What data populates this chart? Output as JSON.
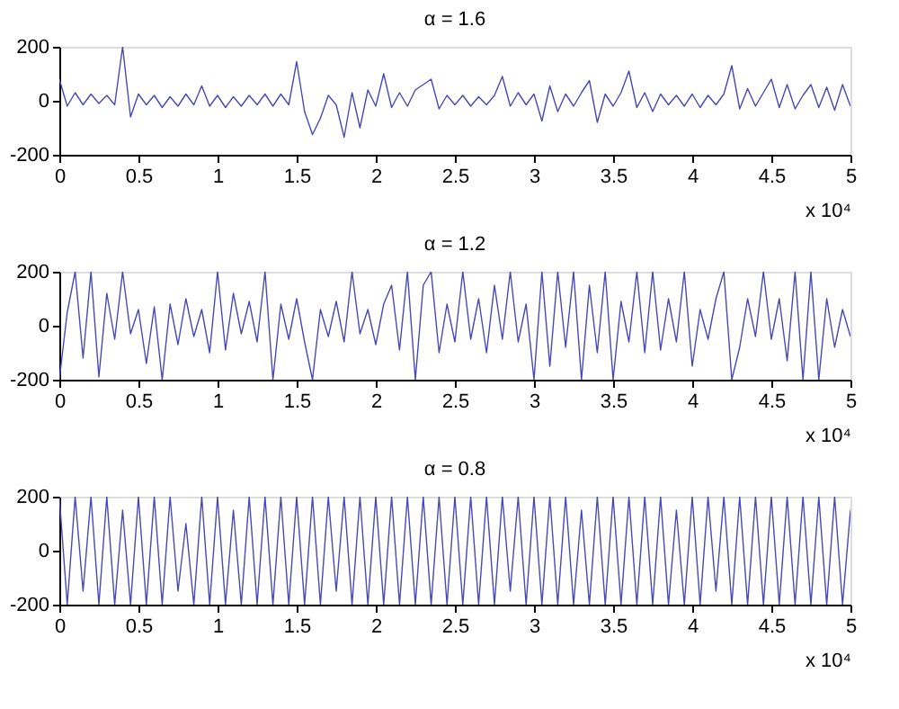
{
  "chart_data": [
    {
      "type": "line",
      "title": "α = 1.6",
      "xlabel": "x 10⁴",
      "color": "#4848b8",
      "grid": false,
      "marker": "none",
      "line_style": "solid",
      "xlim": [
        0,
        5
      ],
      "xticks": [
        0,
        0.5,
        1,
        1.5,
        2,
        2.5,
        3,
        3.5,
        4,
        4.5,
        5
      ],
      "ylim": [
        -200,
        200
      ],
      "yticks": [
        -200,
        0,
        200
      ],
      "x": [
        0,
        0.05,
        0.1,
        0.15,
        0.2,
        0.25,
        0.3,
        0.35,
        0.4,
        0.45,
        0.5,
        0.55,
        0.6,
        0.65,
        0.7,
        0.75,
        0.8,
        0.85,
        0.9,
        0.95,
        1,
        1.05,
        1.1,
        1.15,
        1.2,
        1.25,
        1.3,
        1.35,
        1.4,
        1.45,
        1.5,
        1.55,
        1.6,
        1.65,
        1.7,
        1.75,
        1.8,
        1.85,
        1.9,
        1.95,
        2,
        2.05,
        2.1,
        2.15,
        2.2,
        2.25,
        2.3,
        2.35,
        2.4,
        2.45,
        2.5,
        2.55,
        2.6,
        2.65,
        2.7,
        2.75,
        2.8,
        2.85,
        2.9,
        2.95,
        3,
        3.05,
        3.1,
        3.15,
        3.2,
        3.25,
        3.3,
        3.35,
        3.4,
        3.45,
        3.5,
        3.55,
        3.6,
        3.65,
        3.7,
        3.75,
        3.8,
        3.85,
        3.9,
        3.95,
        4,
        4.05,
        4.1,
        4.15,
        4.2,
        4.25,
        4.3,
        4.35,
        4.4,
        4.45,
        4.5,
        4.55,
        4.6,
        4.65,
        4.7,
        4.75,
        4.8,
        4.85,
        4.9,
        4.95,
        5
      ],
      "values": [
        80,
        -20,
        30,
        -15,
        25,
        -10,
        20,
        -15,
        200,
        -60,
        25,
        -15,
        20,
        -25,
        15,
        -20,
        25,
        -15,
        55,
        -20,
        20,
        -25,
        15,
        -20,
        20,
        -15,
        25,
        -20,
        25,
        -15,
        145,
        -40,
        -125,
        -65,
        20,
        -15,
        -135,
        30,
        -100,
        40,
        -20,
        100,
        -25,
        30,
        -20,
        40,
        60,
        80,
        -30,
        20,
        -15,
        20,
        -20,
        15,
        -15,
        20,
        90,
        -20,
        30,
        -15,
        25,
        -75,
        55,
        -40,
        25,
        -20,
        30,
        75,
        -80,
        25,
        -20,
        30,
        110,
        -25,
        30,
        -40,
        25,
        -15,
        20,
        -20,
        25,
        -25,
        20,
        -15,
        25,
        130,
        -30,
        45,
        -20,
        30,
        80,
        -25,
        60,
        -30,
        20,
        60,
        -25,
        50,
        -35,
        60,
        -20
      ]
    },
    {
      "type": "line",
      "title": "α = 1.2",
      "xlabel": "x 10⁴",
      "color": "#4848b8",
      "grid": false,
      "marker": "none",
      "line_style": "solid",
      "xlim": [
        0,
        5
      ],
      "xticks": [
        0,
        0.5,
        1,
        1.5,
        2,
        2.5,
        3,
        3.5,
        4,
        4.5,
        5
      ],
      "ylim": [
        -200,
        200
      ],
      "yticks": [
        -200,
        0,
        200
      ],
      "x": [
        0,
        0.05,
        0.1,
        0.15,
        0.2,
        0.25,
        0.3,
        0.35,
        0.4,
        0.45,
        0.5,
        0.55,
        0.6,
        0.65,
        0.7,
        0.75,
        0.8,
        0.85,
        0.9,
        0.95,
        1,
        1.05,
        1.1,
        1.15,
        1.2,
        1.25,
        1.3,
        1.35,
        1.4,
        1.45,
        1.5,
        1.55,
        1.6,
        1.65,
        1.7,
        1.75,
        1.8,
        1.85,
        1.9,
        1.95,
        2,
        2.05,
        2.1,
        2.15,
        2.2,
        2.25,
        2.3,
        2.35,
        2.4,
        2.45,
        2.5,
        2.55,
        2.6,
        2.65,
        2.7,
        2.75,
        2.8,
        2.85,
        2.9,
        2.95,
        3,
        3.05,
        3.1,
        3.15,
        3.2,
        3.25,
        3.3,
        3.35,
        3.4,
        3.45,
        3.5,
        3.55,
        3.6,
        3.65,
        3.7,
        3.75,
        3.8,
        3.85,
        3.9,
        3.95,
        4,
        4.05,
        4.1,
        4.15,
        4.2,
        4.25,
        4.3,
        4.35,
        4.4,
        4.45,
        4.5,
        4.55,
        4.6,
        4.65,
        4.7,
        4.75,
        4.8,
        4.85,
        4.9,
        4.95,
        5
      ],
      "values": [
        -200,
        50,
        200,
        -120,
        200,
        -190,
        120,
        -50,
        200,
        -30,
        60,
        -140,
        70,
        -200,
        80,
        -70,
        100,
        -40,
        60,
        -100,
        200,
        -90,
        120,
        -30,
        90,
        -60,
        200,
        -200,
        80,
        -50,
        100,
        -60,
        -200,
        60,
        -40,
        90,
        -60,
        200,
        -30,
        60,
        -70,
        80,
        150,
        -90,
        200,
        -200,
        150,
        200,
        -100,
        80,
        -60,
        200,
        -50,
        100,
        -100,
        150,
        -50,
        200,
        -60,
        80,
        -200,
        200,
        -150,
        200,
        -80,
        200,
        -200,
        150,
        -100,
        200,
        -200,
        90,
        -60,
        200,
        -100,
        200,
        -90,
        100,
        -60,
        200,
        -150,
        60,
        -50,
        100,
        200,
        -200,
        -80,
        100,
        -40,
        200,
        -50,
        100,
        -130,
        200,
        -200,
        200,
        -200,
        100,
        -80,
        60,
        -40
      ]
    },
    {
      "type": "line",
      "title": "α = 0.8",
      "xlabel": "x 10⁴",
      "color": "#4848b8",
      "grid": false,
      "marker": "none",
      "line_style": "solid",
      "xlim": [
        0,
        5
      ],
      "xticks": [
        0,
        0.5,
        1,
        1.5,
        2,
        2.5,
        3,
        3.5,
        4,
        4.5,
        5
      ],
      "ylim": [
        -200,
        200
      ],
      "yticks": [
        -200,
        0,
        200
      ],
      "x": [
        0,
        0.05,
        0.1,
        0.15,
        0.2,
        0.25,
        0.3,
        0.35,
        0.4,
        0.45,
        0.5,
        0.55,
        0.6,
        0.65,
        0.7,
        0.75,
        0.8,
        0.85,
        0.9,
        0.95,
        1,
        1.05,
        1.1,
        1.15,
        1.2,
        1.25,
        1.3,
        1.35,
        1.4,
        1.45,
        1.5,
        1.55,
        1.6,
        1.65,
        1.7,
        1.75,
        1.8,
        1.85,
        1.9,
        1.95,
        2,
        2.05,
        2.1,
        2.15,
        2.2,
        2.25,
        2.3,
        2.35,
        2.4,
        2.45,
        2.5,
        2.55,
        2.6,
        2.65,
        2.7,
        2.75,
        2.8,
        2.85,
        2.9,
        2.95,
        3,
        3.05,
        3.1,
        3.15,
        3.2,
        3.25,
        3.3,
        3.35,
        3.4,
        3.45,
        3.5,
        3.55,
        3.6,
        3.65,
        3.7,
        3.75,
        3.8,
        3.85,
        3.9,
        3.95,
        4,
        4.05,
        4.1,
        4.15,
        4.2,
        4.25,
        4.3,
        4.35,
        4.4,
        4.45,
        4.5,
        4.55,
        4.6,
        4.65,
        4.7,
        4.75,
        4.8,
        4.85,
        4.9,
        4.95,
        5
      ],
      "values": [
        200,
        -200,
        200,
        -150,
        200,
        -200,
        200,
        -200,
        150,
        -200,
        200,
        -200,
        200,
        -200,
        200,
        -150,
        100,
        -200,
        200,
        -200,
        200,
        -200,
        150,
        -200,
        200,
        -200,
        200,
        -200,
        200,
        -200,
        200,
        -200,
        200,
        -200,
        200,
        -150,
        200,
        -200,
        200,
        -200,
        200,
        -200,
        200,
        -200,
        200,
        -200,
        200,
        -200,
        200,
        -200,
        200,
        -200,
        200,
        -200,
        200,
        -200,
        200,
        -150,
        200,
        -200,
        200,
        -200,
        200,
        -200,
        200,
        -200,
        150,
        -200,
        200,
        -200,
        200,
        -200,
        200,
        -200,
        200,
        -200,
        200,
        -200,
        150,
        -200,
        200,
        -200,
        200,
        -150,
        200,
        -200,
        200,
        -200,
        200,
        -200,
        200,
        -200,
        200,
        -200,
        200,
        -200,
        200,
        -200,
        200,
        -200,
        150
      ]
    }
  ]
}
